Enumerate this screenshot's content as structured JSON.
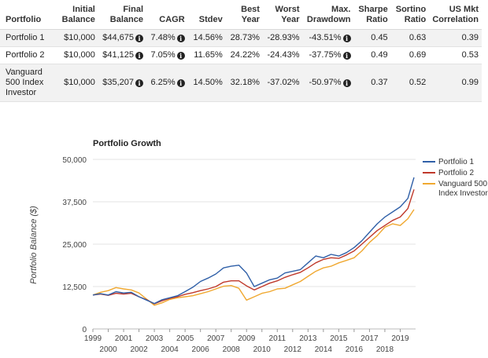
{
  "table": {
    "headers": [
      "Portfolio",
      "Initial\nBalance",
      "Final\nBalance",
      "CAGR",
      "Stdev",
      "Best\nYear",
      "Worst\nYear",
      "Max.\nDrawdown",
      "Sharpe\nRatio",
      "Sortino\nRatio",
      "US Mkt\nCorrelation"
    ],
    "rows": [
      {
        "name": "Portfolio 1",
        "initial": "$10,000",
        "final": "$44,675",
        "cagr": "7.48%",
        "stdev": "14.56%",
        "best": "28.73%",
        "worst": "-28.93%",
        "drawdown": "-43.51%",
        "sharpe": "0.45",
        "sortino": "0.63",
        "corr": "0.39"
      },
      {
        "name": "Portfolio 2",
        "initial": "$10,000",
        "final": "$41,125",
        "cagr": "7.05%",
        "stdev": "11.65%",
        "best": "24.22%",
        "worst": "-24.43%",
        "drawdown": "-37.75%",
        "sharpe": "0.49",
        "sortino": "0.69",
        "corr": "0.53"
      },
      {
        "name": "Vanguard 500 Index Investor",
        "initial": "$10,000",
        "final": "$35,207",
        "cagr": "6.25%",
        "stdev": "14.50%",
        "best": "32.18%",
        "worst": "-37.02%",
        "drawdown": "-50.97%",
        "sharpe": "0.37",
        "sortino": "0.52",
        "corr": "0.99"
      }
    ],
    "info_icon": "info-circle-icon"
  },
  "chart_data": {
    "type": "line",
    "title": "Portfolio Growth",
    "ylabel": "Portfolio Balance ($)",
    "xlabel": "",
    "ylim": [
      0,
      50000
    ],
    "xlim": [
      1999,
      2020
    ],
    "y_ticks": [
      "0",
      "12,500",
      "25,000",
      "37,500",
      "50,000"
    ],
    "y_tick_values": [
      0,
      12500,
      25000,
      37500,
      50000
    ],
    "x_ticks_upper": [
      "1999",
      "2001",
      "2003",
      "2005",
      "2007",
      "2009",
      "2011",
      "2013",
      "2015",
      "2017",
      "2019"
    ],
    "x_ticks_lower": [
      "2000",
      "2002",
      "2004",
      "2006",
      "2008",
      "2010",
      "2012",
      "2014",
      "2016",
      "2018"
    ],
    "grid": true,
    "legend_position": "right",
    "x": [
      1999.0,
      1999.5,
      2000.0,
      2000.5,
      2001.0,
      2001.5,
      2002.0,
      2002.5,
      2003.0,
      2003.5,
      2004.0,
      2004.5,
      2005.0,
      2005.5,
      2006.0,
      2006.5,
      2007.0,
      2007.5,
      2008.0,
      2008.5,
      2009.0,
      2009.5,
      2010.0,
      2010.5,
      2011.0,
      2011.5,
      2012.0,
      2012.5,
      2013.0,
      2013.5,
      2014.0,
      2014.5,
      2015.0,
      2015.5,
      2016.0,
      2016.5,
      2017.0,
      2017.5,
      2018.0,
      2018.5,
      2019.0,
      2019.5,
      2019.9
    ],
    "series": [
      {
        "name": "Portfolio 1",
        "color": "#3060a8",
        "values": [
          10000,
          10400,
          10000,
          11000,
          10600,
          10800,
          9500,
          8500,
          7500,
          8600,
          9200,
          9800,
          11000,
          12300,
          14000,
          15000,
          16200,
          18000,
          18500,
          18800,
          16500,
          12500,
          13500,
          14500,
          15000,
          16500,
          17000,
          17500,
          19500,
          21500,
          21000,
          22000,
          21500,
          22500,
          24000,
          26000,
          28500,
          31000,
          33000,
          34500,
          36000,
          38500,
          44675
        ]
      },
      {
        "name": "Portfolio 2",
        "color": "#c0392b",
        "values": [
          10000,
          10300,
          9900,
          10500,
          10300,
          10500,
          9500,
          8600,
          7400,
          8300,
          9000,
          9500,
          10200,
          10700,
          11300,
          11800,
          12500,
          13800,
          14200,
          14200,
          12700,
          11500,
          12500,
          13500,
          14200,
          15200,
          16000,
          16700,
          18000,
          19500,
          20500,
          21000,
          20800,
          21800,
          23000,
          25000,
          27000,
          29000,
          30500,
          32000,
          33000,
          35500,
          41125
        ]
      },
      {
        "name": "Vanguard 500 Index Investor",
        "color": "#f0a830",
        "values": [
          10000,
          10800,
          11300,
          12200,
          11800,
          11500,
          10600,
          8800,
          7000,
          7700,
          8700,
          9200,
          9500,
          9800,
          10400,
          11000,
          11800,
          12600,
          12800,
          12000,
          8500,
          9500,
          10500,
          11000,
          11800,
          12000,
          13000,
          14000,
          15500,
          17000,
          18000,
          18500,
          19500,
          20200,
          21000,
          23000,
          25500,
          27500,
          30000,
          31000,
          30500,
          32500,
          35207
        ]
      }
    ]
  }
}
